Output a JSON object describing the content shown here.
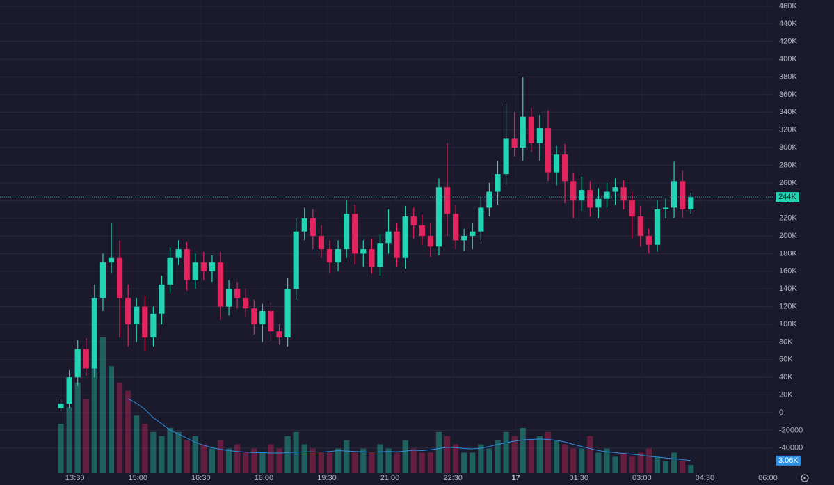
{
  "chart_data": {
    "type": "candlestick",
    "x": [
      790,
      802,
      814,
      826,
      838,
      850,
      862,
      874,
      886,
      898,
      910,
      922,
      934,
      946,
      958,
      970,
      982,
      994,
      1006,
      1018,
      1030,
      1042,
      1054,
      1066,
      1078,
      1090,
      1102,
      1114,
      1126,
      1138,
      1150,
      1162,
      1174,
      1186,
      1198,
      1210,
      1222,
      1234,
      1246,
      1258,
      1270,
      1282,
      1294,
      1306,
      1318,
      1330,
      1342,
      1354,
      1366,
      1378,
      1390,
      1402,
      1414,
      1426,
      1438,
      1450,
      1462,
      1474,
      1486,
      1498,
      1510,
      1522,
      1534,
      1546,
      1558,
      1570,
      1582,
      1594,
      1606,
      1618,
      1630,
      1642,
      1654,
      1666,
      1678,
      1690
    ],
    "open": [
      5000,
      10000,
      40000,
      72000,
      50000,
      130000,
      170000,
      175000,
      130000,
      100000,
      120000,
      85000,
      112000,
      145000,
      175000,
      185000,
      150000,
      170000,
      160000,
      170000,
      120000,
      140000,
      130000,
      118000,
      100000,
      115000,
      92000,
      85000,
      140000,
      205000,
      220000,
      200000,
      185000,
      170000,
      185000,
      225000,
      180000,
      185000,
      165000,
      192000,
      205000,
      175000,
      222000,
      212000,
      200000,
      188000,
      255000,
      225000,
      195000,
      200000,
      205000,
      232000,
      250000,
      270000,
      310000,
      300000,
      335000,
      305000,
      322000,
      272000,
      292000,
      262000,
      240000,
      252000,
      232000,
      242000,
      250000,
      255000,
      240000,
      222000,
      200000,
      190000,
      230000,
      232000,
      262000,
      230000
    ],
    "high": [
      15000,
      48000,
      82000,
      84000,
      145000,
      180000,
      215000,
      195000,
      145000,
      130000,
      132000,
      120000,
      155000,
      187000,
      195000,
      193000,
      180000,
      182000,
      178000,
      182000,
      150000,
      148000,
      140000,
      128000,
      123000,
      125000,
      100000,
      152000,
      220000,
      232000,
      230000,
      212000,
      195000,
      195000,
      240000,
      235000,
      195000,
      197000,
      202000,
      230000,
      215000,
      234000,
      232000,
      224000,
      215000,
      265000,
      305000,
      235000,
      208000,
      215000,
      244000,
      260000,
      285000,
      350000,
      340000,
      380000,
      345000,
      337000,
      342000,
      302000,
      304000,
      272000,
      267000,
      262000,
      254000,
      260000,
      265000,
      263000,
      250000,
      234000,
      208000,
      240000,
      242000,
      284000,
      274000,
      249000
    ],
    "low": [
      2000,
      5000,
      30000,
      42000,
      40000,
      115000,
      158000,
      85000,
      75000,
      80000,
      70000,
      75000,
      100000,
      135000,
      167000,
      138000,
      140000,
      150000,
      148000,
      105000,
      110000,
      118000,
      108000,
      88000,
      80000,
      82000,
      77000,
      75000,
      128000,
      195000,
      185000,
      175000,
      158000,
      160000,
      175000,
      168000,
      165000,
      157000,
      155000,
      180000,
      165000,
      163000,
      197000,
      190000,
      176000,
      178000,
      200000,
      185000,
      183000,
      185000,
      195000,
      222000,
      235000,
      258000,
      290000,
      285000,
      295000,
      285000,
      262000,
      257000,
      237000,
      220000,
      228000,
      222000,
      220000,
      232000,
      235000,
      230000,
      197000,
      188000,
      180000,
      182000,
      220000,
      220000,
      220000,
      225000
    ],
    "close": [
      10000,
      40000,
      72000,
      50000,
      130000,
      170000,
      175000,
      130000,
      100000,
      120000,
      85000,
      112000,
      145000,
      175000,
      185000,
      150000,
      170000,
      160000,
      170000,
      120000,
      140000,
      130000,
      118000,
      100000,
      115000,
      92000,
      85000,
      140000,
      205000,
      220000,
      200000,
      185000,
      170000,
      185000,
      225000,
      180000,
      185000,
      165000,
      192000,
      205000,
      175000,
      222000,
      212000,
      200000,
      188000,
      255000,
      225000,
      195000,
      200000,
      205000,
      232000,
      250000,
      270000,
      310000,
      300000,
      335000,
      305000,
      322000,
      272000,
      292000,
      262000,
      240000,
      252000,
      232000,
      242000,
      250000,
      255000,
      240000,
      222000,
      200000,
      190000,
      230000,
      232000,
      262000,
      230000,
      244000
    ],
    "volume": [
      12000,
      16000,
      22000,
      18000,
      30000,
      33000,
      26000,
      22000,
      20000,
      14000,
      12000,
      10000,
      9000,
      11000,
      10000,
      8000,
      9000,
      7000,
      6000,
      8000,
      6000,
      7000,
      5000,
      6000,
      5000,
      7000,
      6000,
      9000,
      10000,
      7000,
      6000,
      5000,
      5000,
      6000,
      8000,
      5000,
      6000,
      5000,
      7000,
      6000,
      5000,
      8000,
      6000,
      5000,
      5000,
      10000,
      9000,
      7000,
      5000,
      5000,
      7000,
      6000,
      8000,
      10000,
      9000,
      11000,
      8000,
      9000,
      10000,
      8000,
      7000,
      6000,
      6000,
      9000,
      5000,
      6000,
      4000,
      5000,
      4000,
      5000,
      6000,
      4000,
      3000,
      5000,
      3000,
      2000
    ],
    "volume_ma": {
      "color": "#2e8fe0",
      "label": "3.06K",
      "values": [
        null,
        null,
        null,
        null,
        null,
        null,
        null,
        null,
        18100,
        17000,
        15500,
        13500,
        12000,
        10500,
        9500,
        8500,
        7500,
        6800,
        6200,
        5800,
        5500,
        5300,
        5100,
        5000,
        5000,
        4900,
        4900,
        5000,
        5100,
        5200,
        5200,
        5100,
        5300,
        5500,
        5400,
        5300,
        5200,
        5100,
        5200,
        5300,
        5200,
        5400,
        5600,
        5500,
        5700,
        6000,
        6300,
        6200,
        6000,
        5900,
        6100,
        6500,
        7000,
        7400,
        7800,
        8100,
        8200,
        8300,
        8200,
        8000,
        7600,
        7000,
        6500,
        6000,
        5500,
        5200,
        5000,
        4800,
        4600,
        4400,
        4100,
        3900,
        3700,
        3500,
        3300,
        3060
      ]
    },
    "up_color": "#22d3b4",
    "down_color": "#e3245f",
    "last_price": {
      "value": 244000,
      "label": "244K"
    },
    "xlim": [
      703,
      1808
    ],
    "xticks": [
      {
        "value": 810,
        "label": "13:30"
      },
      {
        "value": 900,
        "label": "15:00"
      },
      {
        "value": 990,
        "label": "16:30"
      },
      {
        "value": 1080,
        "label": "18:00"
      },
      {
        "value": 1170,
        "label": "19:30"
      },
      {
        "value": 1260,
        "label": "21:00"
      },
      {
        "value": 1350,
        "label": "22:30"
      },
      {
        "value": 1440,
        "label": "17"
      },
      {
        "value": 1530,
        "label": "01:30"
      },
      {
        "value": 1620,
        "label": "03:00"
      },
      {
        "value": 1710,
        "label": "04:30"
      },
      {
        "value": 1800,
        "label": "06:00"
      }
    ],
    "ylim": [
      -68500,
      467000
    ],
    "yticks": [
      {
        "value": 460000,
        "label": "460K"
      },
      {
        "value": 440000,
        "label": "440K"
      },
      {
        "value": 420000,
        "label": "420K"
      },
      {
        "value": 400000,
        "label": "400K"
      },
      {
        "value": 380000,
        "label": "380K"
      },
      {
        "value": 360000,
        "label": "360K"
      },
      {
        "value": 340000,
        "label": "340K"
      },
      {
        "value": 320000,
        "label": "320K"
      },
      {
        "value": 300000,
        "label": "300K"
      },
      {
        "value": 280000,
        "label": "280K"
      },
      {
        "value": 260000,
        "label": "260K"
      },
      {
        "value": 240000,
        "label": "240K"
      },
      {
        "value": 220000,
        "label": "220K"
      },
      {
        "value": 200000,
        "label": "200K"
      },
      {
        "value": 180000,
        "label": "180K"
      },
      {
        "value": 160000,
        "label": "160K"
      },
      {
        "value": 140000,
        "label": "140K"
      },
      {
        "value": 120000,
        "label": "120K"
      },
      {
        "value": 100000,
        "label": "100K"
      },
      {
        "value": 80000,
        "label": "80K"
      },
      {
        "value": 60000,
        "label": "60K"
      },
      {
        "value": 40000,
        "label": "40K"
      },
      {
        "value": 20000,
        "label": "20K"
      },
      0,
      -20000,
      -40000
    ],
    "y2lim": [
      0,
      115000
    ],
    "grid": true
  }
}
